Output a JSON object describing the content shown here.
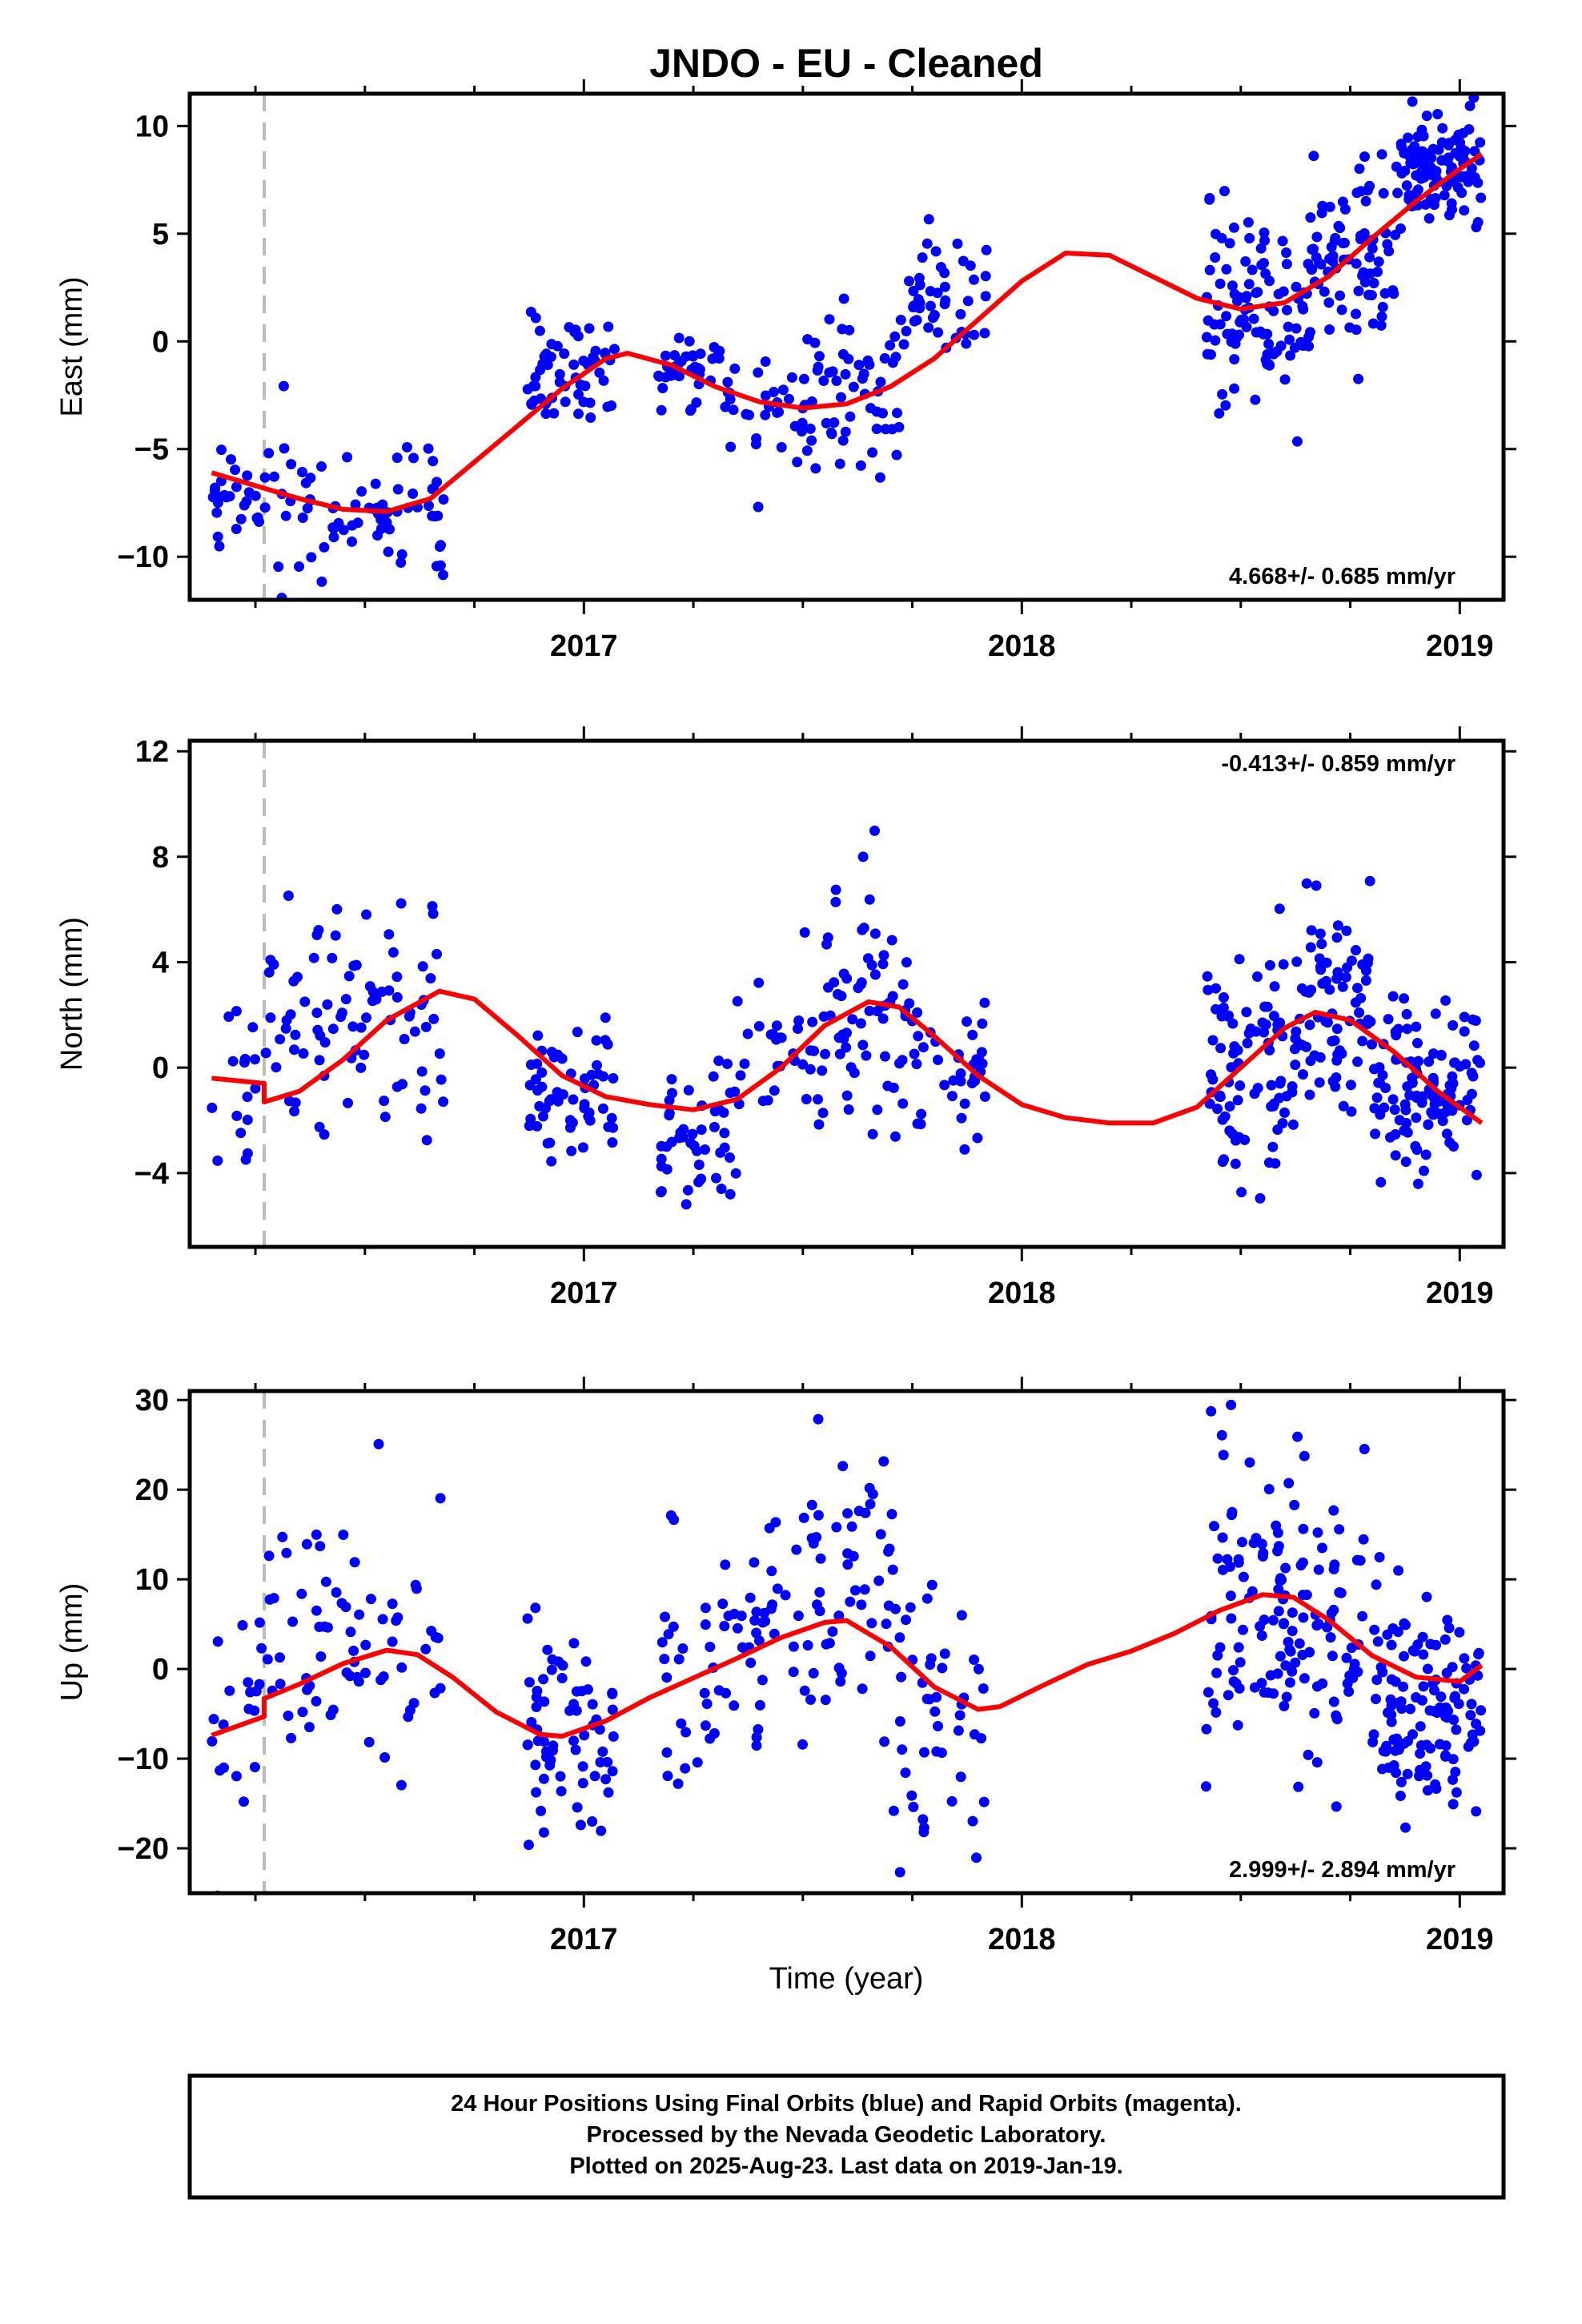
{
  "title": "JNDO  - EU - Cleaned",
  "xlabel": "Time (year)",
  "footer": {
    "lines": [
      "24 Hour Positions Using Final Orbits (blue) and Rapid Orbits (magenta).",
      "Processed by the Nevada Geodetic Laboratory.",
      "Plotted on 2025-Aug-23. Last data on 2019-Jan-19."
    ]
  },
  "colors": {
    "points": "#0000ff",
    "fit": "#ff0000",
    "event_line": "#bbbbbb",
    "frame": "#000000"
  },
  "chart_data": [
    {
      "type": "scatter",
      "ylabel": "East (mm)",
      "rate": "4.668+/- 0.685 mm/yr",
      "rate_position": "bottom-right",
      "xlim": [
        2016.1,
        2019.1
      ],
      "ylim": [
        -12,
        11.5
      ],
      "xticks": [
        2017,
        2018,
        2019
      ],
      "yticks": [
        -10,
        -5,
        0,
        5,
        10
      ],
      "event_line_x": 2016.27,
      "fit": [
        [
          2016.15,
          -6.1
        ],
        [
          2016.25,
          -6.7
        ],
        [
          2016.35,
          -7.3
        ],
        [
          2016.45,
          -7.8
        ],
        [
          2016.55,
          -7.9
        ],
        [
          2016.65,
          -7.3
        ],
        [
          2016.75,
          -5.6
        ],
        [
          2016.85,
          -3.9
        ],
        [
          2016.95,
          -2.2
        ],
        [
          2017.05,
          -0.8
        ],
        [
          2017.1,
          -0.55
        ],
        [
          2017.2,
          -1.1
        ],
        [
          2017.3,
          -2.1
        ],
        [
          2017.4,
          -2.8
        ],
        [
          2017.5,
          -3.1
        ],
        [
          2017.6,
          -2.9
        ],
        [
          2017.7,
          -2.1
        ],
        [
          2017.8,
          -0.8
        ],
        [
          2017.9,
          1.0
        ],
        [
          2018.0,
          2.8
        ],
        [
          2018.1,
          4.1
        ],
        [
          2018.2,
          4.0
        ],
        [
          2018.3,
          3.0
        ],
        [
          2018.4,
          2.0
        ],
        [
          2018.5,
          1.5
        ],
        [
          2018.6,
          1.8
        ],
        [
          2018.7,
          3.0
        ],
        [
          2018.8,
          4.8
        ],
        [
          2018.9,
          6.5
        ],
        [
          2019.0,
          8.0
        ],
        [
          2019.05,
          8.7
        ]
      ],
      "series": [
        {
          "segments": [
            [
              2016.15,
              2016.27,
              -7.0,
              1.0,
              26
            ],
            [
              2016.27,
              2016.68,
              -8.0,
              1.8,
              78
            ],
            [
              2016.87,
              2017.07,
              -1.3,
              1.1,
              58
            ],
            [
              2017.17,
              2017.33,
              -1.3,
              0.9,
              42
            ],
            [
              2017.33,
              2017.5,
              -3.3,
              1.3,
              28
            ],
            [
              2017.5,
              2017.72,
              -2.2,
              1.8,
              58
            ],
            [
              2017.72,
              2017.92,
              1.8,
              1.3,
              46
            ],
            [
              2018.42,
              2018.65,
              1.7,
              2.3,
              96
            ],
            [
              2018.65,
              2018.85,
              3.8,
              2.0,
              82
            ],
            [
              2018.85,
              2019.05,
              7.8,
              1.3,
              108
            ]
          ]
        }
      ]
    },
    {
      "type": "scatter",
      "ylabel": "North (mm)",
      "rate": "-0.413+/- 0.859 mm/yr",
      "rate_position": "top-right",
      "xlim": [
        2016.1,
        2019.1
      ],
      "ylim": [
        -6.8,
        12.4
      ],
      "xticks": [
        2017,
        2018,
        2019
      ],
      "yticks": [
        -4,
        0,
        4,
        8,
        12
      ],
      "event_line_x": 2016.27,
      "fit": [
        [
          2016.15,
          -0.4
        ],
        [
          2016.27,
          -0.6
        ],
        [
          2016.27,
          -1.3
        ],
        [
          2016.35,
          -0.9
        ],
        [
          2016.45,
          0.3
        ],
        [
          2016.55,
          1.8
        ],
        [
          2016.67,
          2.9
        ],
        [
          2016.75,
          2.6
        ],
        [
          2016.85,
          1.2
        ],
        [
          2016.95,
          -0.3
        ],
        [
          2017.05,
          -1.1
        ],
        [
          2017.15,
          -1.4
        ],
        [
          2017.25,
          -1.6
        ],
        [
          2017.35,
          -1.2
        ],
        [
          2017.45,
          0.0
        ],
        [
          2017.55,
          1.6
        ],
        [
          2017.65,
          2.5
        ],
        [
          2017.72,
          2.3
        ],
        [
          2017.8,
          1.2
        ],
        [
          2017.9,
          -0.3
        ],
        [
          2018.0,
          -1.4
        ],
        [
          2018.1,
          -1.9
        ],
        [
          2018.2,
          -2.1
        ],
        [
          2018.3,
          -2.1
        ],
        [
          2018.4,
          -1.5
        ],
        [
          2018.5,
          0.0
        ],
        [
          2018.6,
          1.5
        ],
        [
          2018.67,
          2.1
        ],
        [
          2018.75,
          1.8
        ],
        [
          2018.85,
          0.6
        ],
        [
          2018.95,
          -0.9
        ],
        [
          2019.05,
          -2.1
        ]
      ],
      "series": [
        {
          "segments": [
            [
              2016.15,
              2016.27,
              -0.3,
              1.6,
              16
            ],
            [
              2016.27,
              2016.68,
              1.6,
              2.5,
              88
            ],
            [
              2016.87,
              2017.07,
              -0.9,
              1.3,
              58
            ],
            [
              2017.17,
              2017.35,
              -2.4,
              1.4,
              48
            ],
            [
              2017.35,
              2017.55,
              0.4,
              1.4,
              34
            ],
            [
              2017.55,
              2017.75,
              2.7,
              2.3,
              64
            ],
            [
              2017.75,
              2017.92,
              0.0,
              1.4,
              36
            ],
            [
              2018.42,
              2018.62,
              0.3,
              2.3,
              84
            ],
            [
              2018.62,
              2018.8,
              2.2,
              2.1,
              78
            ],
            [
              2018.8,
              2019.05,
              -0.9,
              1.4,
              112
            ]
          ]
        }
      ]
    },
    {
      "type": "scatter",
      "ylabel": "Up (mm)",
      "rate": "2.999+/- 2.894 mm/yr",
      "rate_position": "bottom-right",
      "xlim": [
        2016.1,
        2019.1
      ],
      "ylim": [
        -25,
        31
      ],
      "xticks": [
        2017,
        2018,
        2019
      ],
      "yticks": [
        -20,
        -10,
        0,
        10,
        20,
        30
      ],
      "event_line_x": 2016.27,
      "fit": [
        [
          2016.15,
          -7.4
        ],
        [
          2016.27,
          -5.3
        ],
        [
          2016.27,
          -3.3
        ],
        [
          2016.35,
          -1.7
        ],
        [
          2016.45,
          0.6
        ],
        [
          2016.55,
          2.1
        ],
        [
          2016.62,
          1.6
        ],
        [
          2016.7,
          -0.9
        ],
        [
          2016.8,
          -4.8
        ],
        [
          2016.9,
          -7.3
        ],
        [
          2016.95,
          -7.5
        ],
        [
          2017.05,
          -5.8
        ],
        [
          2017.15,
          -3.2
        ],
        [
          2017.25,
          -1.0
        ],
        [
          2017.35,
          1.2
        ],
        [
          2017.45,
          3.5
        ],
        [
          2017.55,
          5.2
        ],
        [
          2017.6,
          5.4
        ],
        [
          2017.7,
          2.5
        ],
        [
          2017.8,
          -2.0
        ],
        [
          2017.9,
          -4.5
        ],
        [
          2017.95,
          -4.2
        ],
        [
          2018.05,
          -1.8
        ],
        [
          2018.15,
          0.5
        ],
        [
          2018.25,
          2.0
        ],
        [
          2018.35,
          4.0
        ],
        [
          2018.45,
          6.5
        ],
        [
          2018.55,
          8.3
        ],
        [
          2018.62,
          8.0
        ],
        [
          2018.7,
          5.5
        ],
        [
          2018.8,
          1.5
        ],
        [
          2018.9,
          -0.9
        ],
        [
          2019.0,
          -1.4
        ],
        [
          2019.05,
          0.4
        ]
      ],
      "series": [
        {
          "segments": [
            [
              2016.15,
              2016.27,
              -5.0,
              6.5,
              20
            ],
            [
              2016.27,
              2016.68,
              2.0,
              7.5,
              70
            ],
            [
              2016.87,
              2017.07,
              -7.5,
              6.0,
              66
            ],
            [
              2017.17,
              2017.42,
              1.5,
              7.5,
              54
            ],
            [
              2017.42,
              2017.72,
              8.0,
              7.5,
              68
            ],
            [
              2017.72,
              2017.92,
              -5.0,
              8.0,
              44
            ],
            [
              2018.42,
              2018.82,
              6.0,
              8.5,
              148
            ],
            [
              2018.82,
              2019.05,
              -5.0,
              5.5,
              118
            ]
          ]
        }
      ]
    }
  ]
}
